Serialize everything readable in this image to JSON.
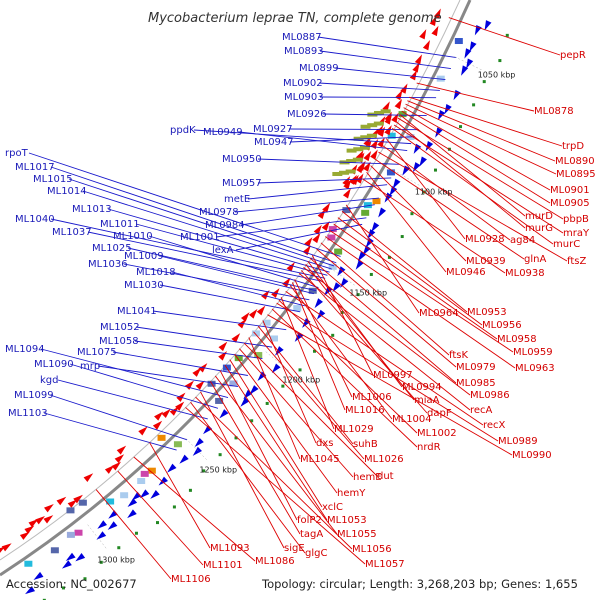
{
  "title": "Mycobacterium leprae TN, complete genome",
  "footer": {
    "accession": "Accession: NC_002677",
    "summary": "Topology: circular; Length: 3,268,203 bp; Genes: 1,655"
  },
  "colors": {
    "forward_strand": "#0000dd",
    "reverse_strand": "#ee0000",
    "backbone": "#888888",
    "gc_mark": "#228822"
  },
  "scale_marks": [
    "1050 kbp",
    "1100 kbp",
    "1150 kbp",
    "1200 kbp",
    "1250 kbp",
    "1300 kbp"
  ],
  "labels_forward": [
    "ML0887",
    "ML0893",
    "ML0899",
    "ML0902",
    "ML0903",
    "ML0926",
    "ML0927",
    "ML0947",
    "ppdK",
    "ML0949",
    "ML0950",
    "ML0957",
    "metE",
    "ML0978",
    "ML0984",
    "ML1001",
    "lexA",
    "rpoT",
    "ML1017",
    "ML1015",
    "ML1014",
    "ML1013",
    "ML1011",
    "ML1040",
    "ML1037",
    "ML1010",
    "ML1025",
    "ML1009",
    "ML1036",
    "ML1018",
    "ML1030",
    "ML1041",
    "ML1052",
    "ML1058",
    "ML1094",
    "ML1075",
    "ML1090",
    "mrp",
    "kgd",
    "ML1099",
    "ML1103"
  ],
  "labels_reverse": [
    "pepR",
    "ML0878",
    "trpD",
    "ML0890",
    "ML0895",
    "ML0901",
    "ML0905",
    "murD",
    "pbpB",
    "murG",
    "mraY",
    "murC",
    "ML0928",
    "ag84",
    "ftsZ",
    "glnA",
    "ML0939",
    "ML0946",
    "ML0938",
    "ML0964",
    "ML0953",
    "ML0956",
    "ML0958",
    "ML0959",
    "ML0963",
    "ftsK",
    "ML0979",
    "ML0997",
    "ML0985",
    "ML0994",
    "miaA",
    "ML0986",
    "dapF",
    "recA",
    "ML1006",
    "ML1016",
    "ML1004",
    "recX",
    "ML1029",
    "ML1002",
    "ML0989",
    "nrdR",
    "ML0990",
    "dxs",
    "suhB",
    "ML1026",
    "ML1045",
    "dut",
    "hemE",
    "hemY",
    "xclC",
    "ML1053",
    "folP2",
    "ML1055",
    "tagA",
    "sigE",
    "ML1056",
    "glgC",
    "ML1057",
    "ML1093",
    "ML1086",
    "ML1101",
    "ML1106"
  ]
}
